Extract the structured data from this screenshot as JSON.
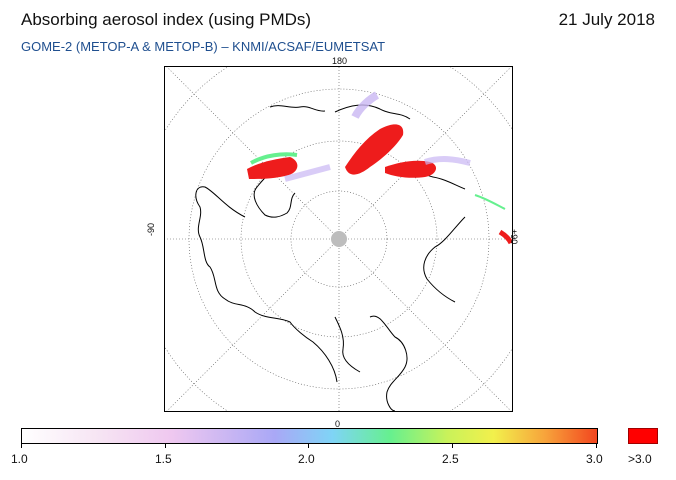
{
  "header": {
    "title": "Absorbing aerosol index (using PMDs)",
    "date": "21 July 2018",
    "subtitle": "GOME-2 (METOP-A & METOP-B)  –  KNMI/ACSAF/EUMETSAT"
  },
  "map": {
    "projection": "north polar stereographic",
    "lon_labels": {
      "top": "180",
      "bottom": "0",
      "left": "-90",
      "right": "+90"
    },
    "colors": {
      "coast": "#000000",
      "grid": "#555555",
      "pole_mask": "#bdbdbd"
    }
  },
  "colorbar": {
    "tick_labels": [
      "1.0",
      "1.5",
      "2.0",
      "2.5",
      "3.0"
    ],
    "over_label": ">3.0",
    "over_color": "#ff0000",
    "gradient_colors": [
      "#ffffff",
      "#efc8f0",
      "#a9a8f6",
      "#7fd4f6",
      "#66f08f",
      "#f2f04c",
      "#f7a33b",
      "#f2461f"
    ]
  }
}
